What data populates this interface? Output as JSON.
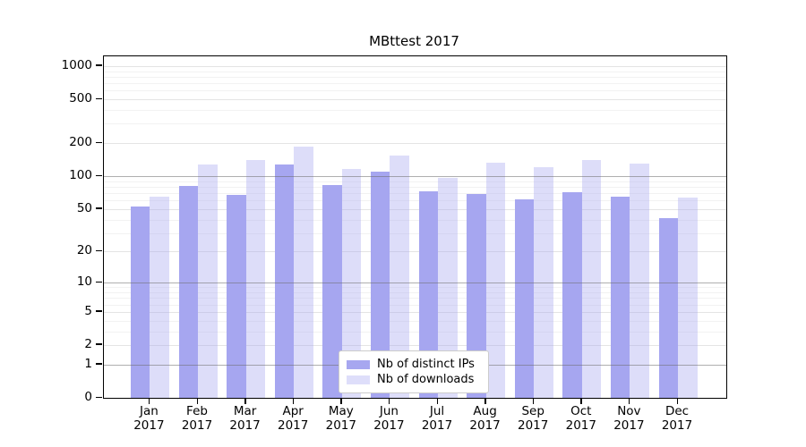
{
  "title": "MBttest 2017",
  "legend": {
    "items": [
      {
        "label": "Nb of distinct IPs",
        "color": "#a7a7f0"
      },
      {
        "label": "Nb of downloads",
        "color": "#dedefa"
      }
    ]
  },
  "chart_data": {
    "type": "bar",
    "title": "MBttest 2017",
    "categories": [
      "Jan",
      "Feb",
      "Mar",
      "Apr",
      "May",
      "Jun",
      "Jul",
      "Aug",
      "Sep",
      "Oct",
      "Nov",
      "Dec"
    ],
    "category_year": "2017",
    "series": [
      {
        "name": "Nb of distinct IPs",
        "color": "#a6a6f0",
        "values": [
          53,
          81,
          67,
          128,
          83,
          110,
          73,
          69,
          61,
          72,
          65,
          41
        ]
      },
      {
        "name": "Nb of downloads",
        "color": "#dcdcf9",
        "values": [
          65,
          128,
          140,
          185,
          117,
          154,
          97,
          133,
          120,
          140,
          130,
          64
        ]
      }
    ],
    "yscale": "symlog",
    "yticks": [
      0,
      1,
      2,
      5,
      10,
      20,
      50,
      100,
      200,
      500,
      1000
    ],
    "ylim": [
      0,
      1250
    ],
    "grid": true,
    "legend_position": "lower center"
  }
}
